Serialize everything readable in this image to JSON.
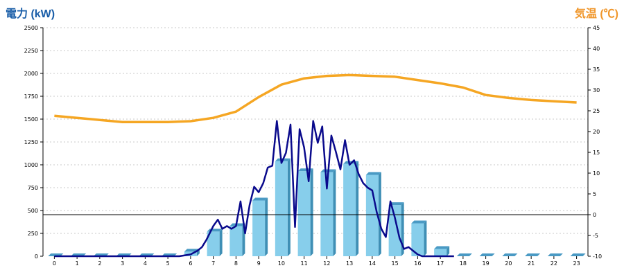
{
  "chart_data": {
    "type": "bar+line",
    "title": "",
    "ylabel_left": "電力 (kW)",
    "ylabel_right": "気温 (℃)",
    "ylabel_left_color": "#1a5ea8",
    "ylabel_right_color": "#f0962a",
    "x_ticks": [
      "0",
      "1",
      "2",
      "3",
      "4",
      "5",
      "6",
      "7",
      "8",
      "9",
      "10",
      "11",
      "12",
      "13",
      "14",
      "15",
      "16",
      "17",
      "18",
      "19",
      "20",
      "21",
      "22",
      "23"
    ],
    "ylim_left": [
      0,
      2500
    ],
    "yticks_left": [
      "0",
      "250",
      "500",
      "750",
      "1000",
      "1250",
      "1500",
      "1750",
      "2000",
      "2250",
      "2500"
    ],
    "ylim_right": [
      -10,
      45
    ],
    "yticks_right": [
      "-10",
      "-5",
      "0",
      "5",
      "10",
      "15",
      "20",
      "25",
      "30",
      "35",
      "40",
      "45"
    ],
    "grid": "horizontal dashed",
    "reference_line": {
      "axis": "right",
      "value": 0
    },
    "series": [
      {
        "kind": "bar",
        "axis": "left",
        "color": "#87ceeb",
        "x": [
          0,
          1,
          2,
          3,
          4,
          5,
          6,
          7,
          8,
          9,
          10,
          11,
          12,
          13,
          14,
          15,
          16,
          17,
          18,
          19,
          20,
          21,
          22,
          23
        ],
        "values": [
          0,
          0,
          0,
          0,
          0,
          0,
          50,
          270,
          330,
          610,
          1040,
          930,
          920,
          1010,
          890,
          560,
          360,
          80,
          0,
          0,
          0,
          0,
          0,
          0
        ]
      },
      {
        "kind": "line",
        "axis": "left",
        "color": "#0a0a8c",
        "x": [
          0,
          5.5,
          6,
          6.3,
          6.5,
          6.7,
          7,
          7.2,
          7.4,
          7.6,
          7.8,
          8,
          8.2,
          8.4,
          8.6,
          8.8,
          9,
          9.2,
          9.4,
          9.6,
          9.8,
          10,
          10.2,
          10.4,
          10.6,
          10.8,
          11,
          11.2,
          11.4,
          11.6,
          11.8,
          12,
          12.2,
          12.4,
          12.6,
          12.8,
          13,
          13.2,
          13.4,
          13.6,
          13.8,
          14,
          14.2,
          14.4,
          14.6,
          14.8,
          15,
          15.2,
          15.4,
          15.6,
          15.8,
          16,
          16.2,
          16.4,
          16.6,
          16.8,
          17,
          17.2,
          17.4,
          17.6
        ],
        "values": [
          0,
          0,
          20,
          60,
          100,
          180,
          330,
          400,
          300,
          330,
          300,
          330,
          600,
          250,
          560,
          760,
          700,
          800,
          970,
          990,
          1480,
          1020,
          1130,
          1440,
          320,
          1390,
          1190,
          820,
          1480,
          1240,
          1420,
          740,
          1320,
          1140,
          950,
          1270,
          1000,
          1050,
          900,
          800,
          750,
          720,
          480,
          300,
          210,
          600,
          420,
          200,
          80,
          100,
          60,
          20,
          0,
          0,
          0,
          0,
          0,
          0,
          0,
          0
        ]
      },
      {
        "kind": "line",
        "axis": "right",
        "color": "#f5a623",
        "x": [
          0,
          1,
          2,
          3,
          4,
          5,
          6,
          7,
          8,
          9,
          10,
          11,
          12,
          13,
          14,
          15,
          16,
          17,
          18,
          19,
          20,
          21,
          22,
          23
        ],
        "values": [
          23.8,
          23.3,
          22.8,
          22.3,
          22.3,
          22.3,
          22.5,
          23.3,
          24.8,
          28.3,
          31.3,
          32.8,
          33.4,
          33.6,
          33.4,
          33.2,
          32.4,
          31.6,
          30.6,
          28.8,
          28.1,
          27.6,
          27.3,
          27.0
        ]
      }
    ]
  }
}
